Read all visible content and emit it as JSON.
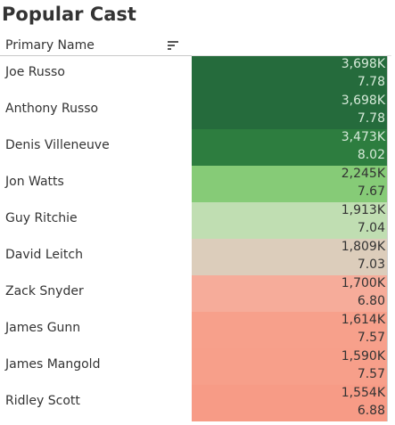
{
  "title": "Popular Cast",
  "column_header": "Primary Name",
  "icons": {
    "sort": "sort-icon"
  },
  "chart_data": {
    "type": "table",
    "title": "Popular Cast",
    "columns": [
      "Primary Name"
    ],
    "rows": [
      {
        "name": "Joe Russo",
        "votes": "3,698K",
        "rating": "7.78",
        "color": "#256b3c"
      },
      {
        "name": "Anthony Russo",
        "votes": "3,698K",
        "rating": "7.78",
        "color": "#256b3c"
      },
      {
        "name": "Denis Villeneuve",
        "votes": "3,473K",
        "rating": "8.02",
        "color": "#2d7d3f"
      },
      {
        "name": "Jon Watts",
        "votes": "2,245K",
        "rating": "7.67",
        "color": "#86cb77"
      },
      {
        "name": "Guy Ritchie",
        "votes": "1,913K",
        "rating": "7.04",
        "color": "#c0deb2"
      },
      {
        "name": "David Leitch",
        "votes": "1,809K",
        "rating": "7.03",
        "color": "#dccdbb"
      },
      {
        "name": "Zack Snyder",
        "votes": "1,700K",
        "rating": "6.80",
        "color": "#f6ac9a"
      },
      {
        "name": "James Gunn",
        "votes": "1,614K",
        "rating": "7.57",
        "color": "#f7a08b"
      },
      {
        "name": "James Mangold",
        "votes": "1,590K",
        "rating": "7.57",
        "color": "#f79f8a"
      },
      {
        "name": "Ridley Scott",
        "votes": "1,554K",
        "rating": "6.88",
        "color": "#f79b86"
      }
    ]
  }
}
